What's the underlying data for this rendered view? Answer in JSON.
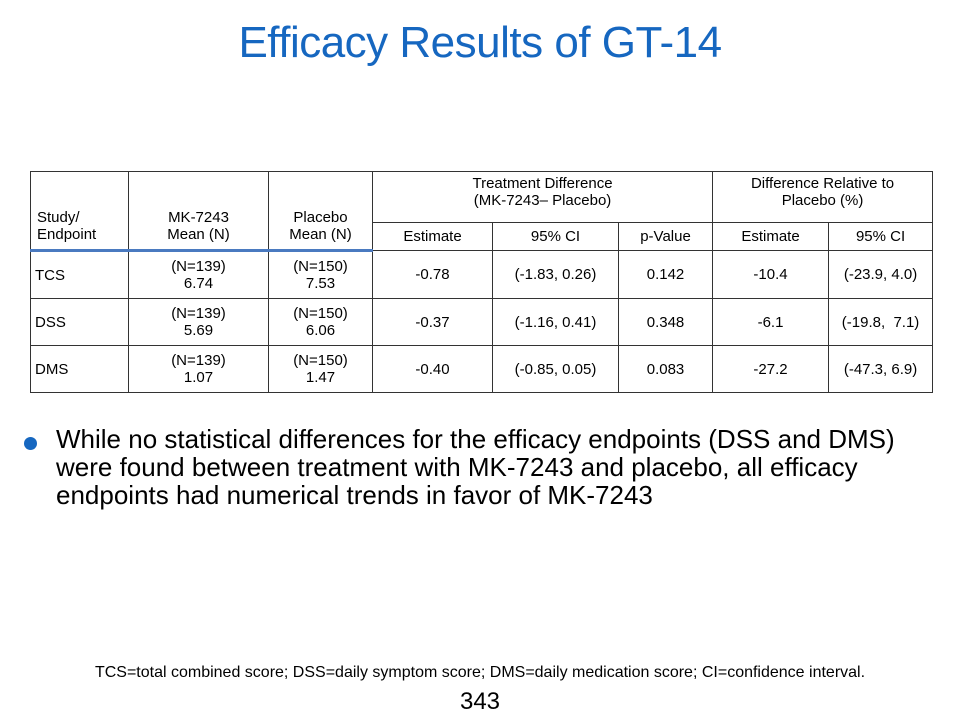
{
  "title": "Efficacy Results of GT-14",
  "table": {
    "headers": {
      "endpoint_line1": "Study/",
      "endpoint_line2": "Endpoint",
      "mk_line1": "MK-7243",
      "mk_line2": "Mean (N)",
      "placebo_line1": "Placebo",
      "placebo_line2": "Mean (N)",
      "treatment_diff_line1": "Treatment Difference",
      "treatment_diff_line2": "(MK-7243– Placebo)",
      "relative_line1": "Difference Relative to",
      "relative_line2": "Placebo (%)",
      "estimate": "Estimate",
      "ci": "95% CI",
      "pvalue": "p-Value",
      "rel_estimate": "Estimate",
      "rel_ci": "95% CI"
    },
    "rows": [
      {
        "endpoint": "TCS",
        "mk_n": "(N=139)",
        "mk_mean": "6.74",
        "pl_n": "(N=150)",
        "pl_mean": "7.53",
        "estimate": "-0.78",
        "ci": "(-1.83, 0.26)",
        "pvalue": "0.142",
        "rel_estimate": "-10.4",
        "rel_ci": "(-23.9, 4.0)"
      },
      {
        "endpoint": "DSS",
        "mk_n": "(N=139)",
        "mk_mean": "5.69",
        "pl_n": "(N=150)",
        "pl_mean": "6.06",
        "estimate": "-0.37",
        "ci": "(-1.16, 0.41)",
        "pvalue": "0.348",
        "rel_estimate": "-6.1",
        "rel_ci": "(-19.8,  7.1)"
      },
      {
        "endpoint": "DMS",
        "mk_n": "(N=139)",
        "mk_mean": "1.07",
        "pl_n": "(N=150)",
        "pl_mean": "1.47",
        "estimate": "-0.40",
        "ci": "(-0.85, 0.05)",
        "pvalue": "0.083",
        "rel_estimate": "-27.2",
        "rel_ci": "(-47.3, 6.9)"
      }
    ]
  },
  "bullet": "While no statistical differences for the efficacy endpoints (DSS and DMS) were found between treatment with MK-7243 and placebo, all efficacy endpoints had numerical trends in favor of MK-7243",
  "footnote": "TCS=total combined score; DSS=daily symptom score; DMS=daily medication score; CI=confidence interval.",
  "page_number": "343",
  "colors": {
    "accent": "#1667c0",
    "table_rule": "#4a7ac0"
  }
}
